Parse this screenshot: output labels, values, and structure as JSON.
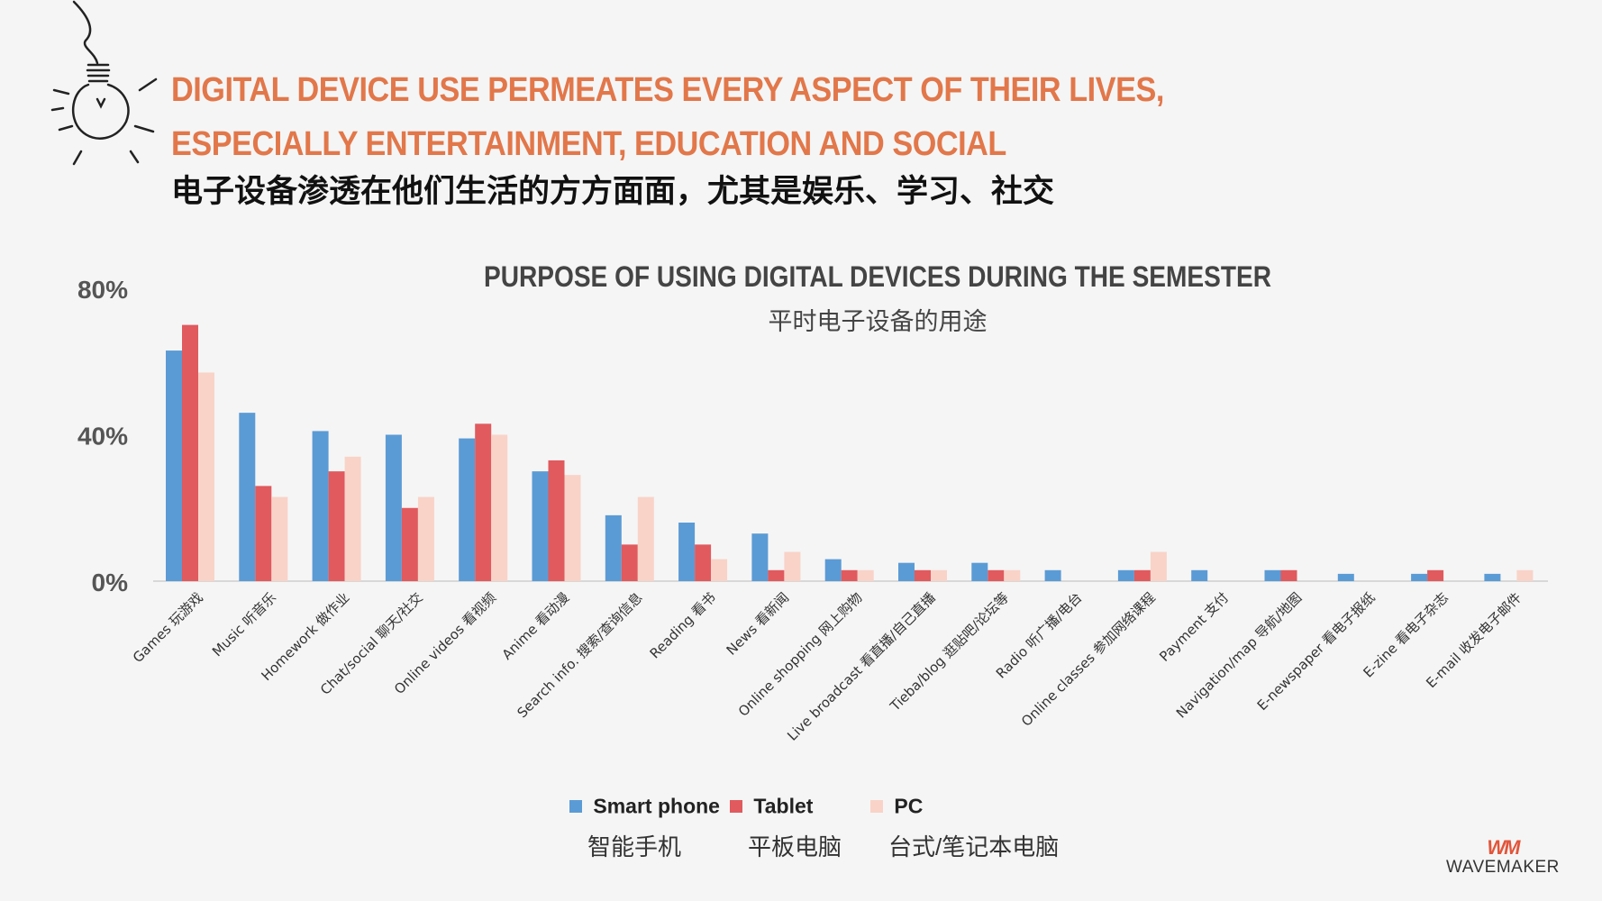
{
  "header": {
    "title_en": "DIGITAL DEVICE USE PERMEATES EVERY ASPECT OF THEIR LIVES, ESPECIALLY ENTERTAINMENT, EDUCATION AND SOCIAL",
    "title_cn": "电子设备渗透在他们生活的方方面面，尤其是娱乐、学习、社交"
  },
  "colors": {
    "accent": "#e2774a",
    "smart_phone": "#5b9bd5",
    "tablet": "#e05a5e",
    "pc": "#f9d3c8"
  },
  "icon": "lightbulb-icon",
  "chart_data": {
    "type": "bar",
    "title": "PURPOSE OF USING DIGITAL DEVICES DURING THE SEMESTER",
    "subtitle": "平时电子设备的用途",
    "ylim": [
      0,
      80
    ],
    "yticks": [
      0,
      40,
      80
    ],
    "ytick_labels": [
      "0%",
      "40%",
      "80%"
    ],
    "categories": [
      "Games 玩游戏",
      "Music 听音乐",
      "Homework 做作业",
      "Chat/social 聊天/社交",
      "Online videos 看视频",
      "Anime 看动漫",
      "Search info. 搜索/查询信息",
      "Reading 看书",
      "News 看新闻",
      "Online shopping 网上购物",
      "Live broadcast 看直播/自己直播",
      "Tieba/blog 逛贴吧/论坛等",
      "Radio 听广播/电台",
      "Online classes 参加网络课程",
      "Payment 支付",
      "Navigation/map 导航/地图",
      "E-newspaper 看电子报纸",
      "E-zine 看电子杂志",
      "E-mail 收发电子邮件"
    ],
    "series": [
      {
        "name": "Smart phone",
        "name_cn": "智能手机",
        "color": "#5b9bd5",
        "values": [
          63,
          46,
          41,
          40,
          39,
          30,
          18,
          16,
          13,
          6,
          5,
          5,
          3,
          3,
          3,
          3,
          2,
          2,
          2
        ]
      },
      {
        "name": "Tablet",
        "name_cn": "平板电脑",
        "color": "#e05a5e",
        "values": [
          70,
          26,
          30,
          20,
          43,
          33,
          10,
          10,
          3,
          3,
          3,
          3,
          0,
          3,
          0,
          3,
          0,
          3,
          0
        ]
      },
      {
        "name": "PC",
        "name_cn": "台式/笔记本电脑",
        "color": "#f9d3c8",
        "values": [
          57,
          23,
          34,
          23,
          40,
          29,
          23,
          6,
          8,
          3,
          3,
          3,
          0,
          8,
          0,
          0,
          0,
          0,
          3
        ]
      }
    ]
  },
  "legend": [
    {
      "label": "Smart phone",
      "label_cn": "智能手机",
      "color": "#5b9bd5"
    },
    {
      "label": "Tablet",
      "label_cn": "平板电脑",
      "color": "#e05a5e"
    },
    {
      "label": "PC",
      "label_cn": "台式/笔记本电脑",
      "color": "#f9d3c8"
    }
  ],
  "brand": {
    "mark": "WM",
    "name": "WAVEMAKER"
  }
}
